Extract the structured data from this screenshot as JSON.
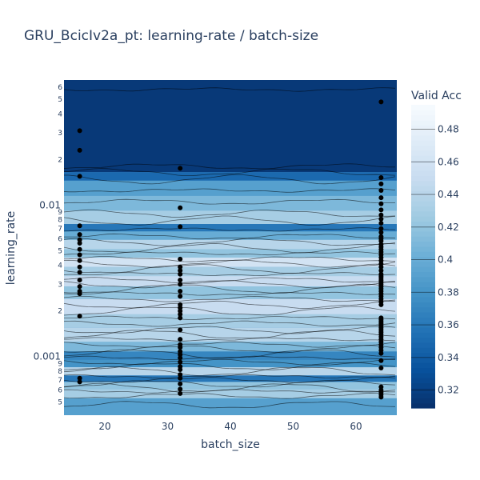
{
  "chart_data": {
    "type": "heatmap",
    "title": "GRU_BcicIv2a_pt: learning-rate / batch-size",
    "xlabel": "batch_size",
    "ylabel": "learning_rate",
    "y_scale": "log",
    "xlim": [
      13.5,
      66.5
    ],
    "ylim": [
      0.00041,
      0.067
    ],
    "x_ticks": [
      20,
      30,
      40,
      50,
      60
    ],
    "x_tick_labels": [
      "20",
      "30",
      "40",
      "50",
      "60"
    ],
    "y_major_ticks": [
      0.001,
      0.01
    ],
    "y_major_tick_labels": [
      "0.001",
      "0.01"
    ],
    "y_minor_ticks": [
      0.0005,
      0.0006,
      0.0007,
      0.0008,
      0.0009,
      0.002,
      0.003,
      0.004,
      0.005,
      0.006,
      0.007,
      0.008,
      0.009,
      0.02,
      0.03,
      0.04,
      0.05,
      0.06
    ],
    "y_minor_tick_labels": [
      "5",
      "6",
      "7",
      "8",
      "9",
      "2",
      "3",
      "4",
      "5",
      "6",
      "7",
      "8",
      "9",
      "2",
      "3",
      "4",
      "5",
      "6"
    ],
    "colorbar": {
      "title": "Valid Acc",
      "colorscale": "Blues",
      "range": [
        0.309,
        0.495
      ],
      "ticks": [
        0.32,
        0.34,
        0.36,
        0.38,
        0.4,
        0.42,
        0.44,
        0.46,
        0.48
      ],
      "tick_labels": [
        "0.32",
        "0.34",
        "0.36",
        "0.38",
        "0.4",
        "0.42",
        "0.44",
        "0.46",
        "0.48"
      ]
    },
    "value_bands": [
      {
        "lr": [
          0.0165,
          0.067
        ],
        "value": 0.315
      },
      {
        "lr": [
          0.0145,
          0.0165
        ],
        "value": 0.35
      },
      {
        "lr": [
          0.0115,
          0.0145
        ],
        "value": 0.39
      },
      {
        "lr": [
          0.0092,
          0.0115
        ],
        "value": 0.41
      },
      {
        "lr": [
          0.0075,
          0.0092
        ],
        "value": 0.43
      },
      {
        "lr": [
          0.0067,
          0.0075
        ],
        "value": 0.36
      },
      {
        "lr": [
          0.0059,
          0.0067
        ],
        "value": 0.4
      },
      {
        "lr": [
          0.0051,
          0.0059
        ],
        "value": 0.44
      },
      {
        "lr": [
          0.0045,
          0.0051
        ],
        "value": 0.42
      },
      {
        "lr": [
          0.0039,
          0.0045
        ],
        "value": 0.46
      },
      {
        "lr": [
          0.0034,
          0.0039
        ],
        "value": 0.43
      },
      {
        "lr": [
          0.0029,
          0.0034
        ],
        "value": 0.45
      },
      {
        "lr": [
          0.0024,
          0.0029
        ],
        "value": 0.42
      },
      {
        "lr": [
          0.0019,
          0.0024
        ],
        "value": 0.45
      },
      {
        "lr": [
          0.00155,
          0.0019
        ],
        "value": 0.43
      },
      {
        "lr": [
          0.00125,
          0.00155
        ],
        "value": 0.44
      },
      {
        "lr": [
          0.00108,
          0.00125
        ],
        "value": 0.41
      },
      {
        "lr": [
          0.00095,
          0.00108
        ],
        "value": 0.37
      },
      {
        "lr": [
          0.00085,
          0.00095
        ],
        "value": 0.38
      },
      {
        "lr": [
          0.00075,
          0.00085
        ],
        "value": 0.44
      },
      {
        "lr": [
          0.00068,
          0.00075
        ],
        "value": 0.36
      },
      {
        "lr": [
          0.00061,
          0.00068
        ],
        "value": 0.42
      },
      {
        "lr": [
          0.00053,
          0.00061
        ],
        "value": 0.43
      },
      {
        "lr": [
          0.00041,
          0.00053
        ],
        "value": 0.39
      }
    ],
    "contour_levels_lr": [
      0.058,
      0.018,
      0.0165,
      0.0148,
      0.0125,
      0.0105,
      0.0088,
      0.0079,
      0.0069,
      0.0062,
      0.0057,
      0.0052,
      0.0048,
      0.0044,
      0.0041,
      0.0038,
      0.0035,
      0.0032,
      0.003,
      0.0028,
      0.0026,
      0.0024,
      0.0022,
      0.002,
      0.0018,
      0.00165,
      0.0015,
      0.0014,
      0.0013,
      0.0012,
      0.00112,
      0.00104,
      0.00098,
      0.00092,
      0.00086,
      0.0008,
      0.00074,
      0.0007,
      0.00066,
      0.00062,
      0.00059,
      0.00055,
      0.00048
    ],
    "points": [
      {
        "batch_size": 16,
        "learning_rate": [
          0.031,
          0.023,
          0.0155,
          0.0073,
          0.0064,
          0.0059,
          0.0056,
          0.0051,
          0.0047,
          0.0043,
          0.0039,
          0.0036,
          0.0032,
          0.0029,
          0.0027,
          0.0026,
          0.00185,
          0.00072,
          0.00068
        ]
      },
      {
        "batch_size": 32,
        "learning_rate": [
          0.0175,
          0.0096,
          0.0072,
          0.0044,
          0.0039,
          0.0037,
          0.0035,
          0.0032,
          0.003,
          0.0027,
          0.0025,
          0.0022,
          0.0021,
          0.002,
          0.0019,
          0.0018,
          0.0015,
          0.0013,
          0.0012,
          0.00115,
          0.00108,
          0.00103,
          0.00098,
          0.00092,
          0.00086,
          0.00082,
          0.00076,
          0.00072,
          0.00066,
          0.00061,
          0.00057
        ]
      },
      {
        "batch_size": 64,
        "learning_rate": [
          0.048,
          0.0152,
          0.0138,
          0.0125,
          0.0112,
          0.0102,
          0.0093,
          0.0086,
          0.0081,
          0.0076,
          0.007,
          0.0066,
          0.0062,
          0.006,
          0.0058,
          0.0055,
          0.0053,
          0.0051,
          0.0049,
          0.0047,
          0.0045,
          0.0043,
          0.0041,
          0.0039,
          0.0037,
          0.0035,
          0.0034,
          0.0033,
          0.0032,
          0.0031,
          0.003,
          0.0029,
          0.0028,
          0.0027,
          0.0026,
          0.0025,
          0.0024,
          0.0023,
          0.0022,
          0.0018,
          0.00175,
          0.0017,
          0.00165,
          0.0016,
          0.00155,
          0.0015,
          0.00145,
          0.0014,
          0.00135,
          0.0013,
          0.00125,
          0.0012,
          0.00115,
          0.0011,
          0.00105,
          0.00094,
          0.00084,
          0.00063,
          0.0006,
          0.00058,
          0.00056,
          0.00054
        ]
      }
    ]
  }
}
